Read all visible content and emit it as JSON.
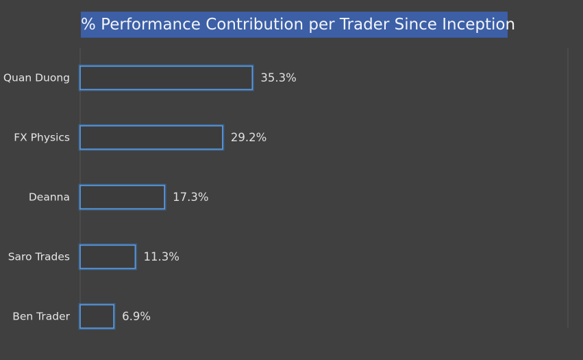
{
  "chart_data": {
    "type": "bar",
    "orientation": "horizontal",
    "title": "% Performance Contribution per Trader Since Inception",
    "categories": [
      "Quan Duong",
      "FX Physics",
      "Deanna",
      "Saro Trades",
      "Ben Trader"
    ],
    "values": [
      35.3,
      29.2,
      17.3,
      11.3,
      6.9
    ],
    "value_labels": [
      "35.3%",
      "29.2%",
      "17.3%",
      "11.3%",
      "6.9%"
    ],
    "xlim": [
      0,
      100
    ],
    "xlabel": "",
    "ylabel": "",
    "grid": false,
    "legend": "none",
    "colors": {
      "background": "#404040",
      "title_background": "#3c5fa6",
      "bar_outline": "#5aa0ec"
    }
  }
}
